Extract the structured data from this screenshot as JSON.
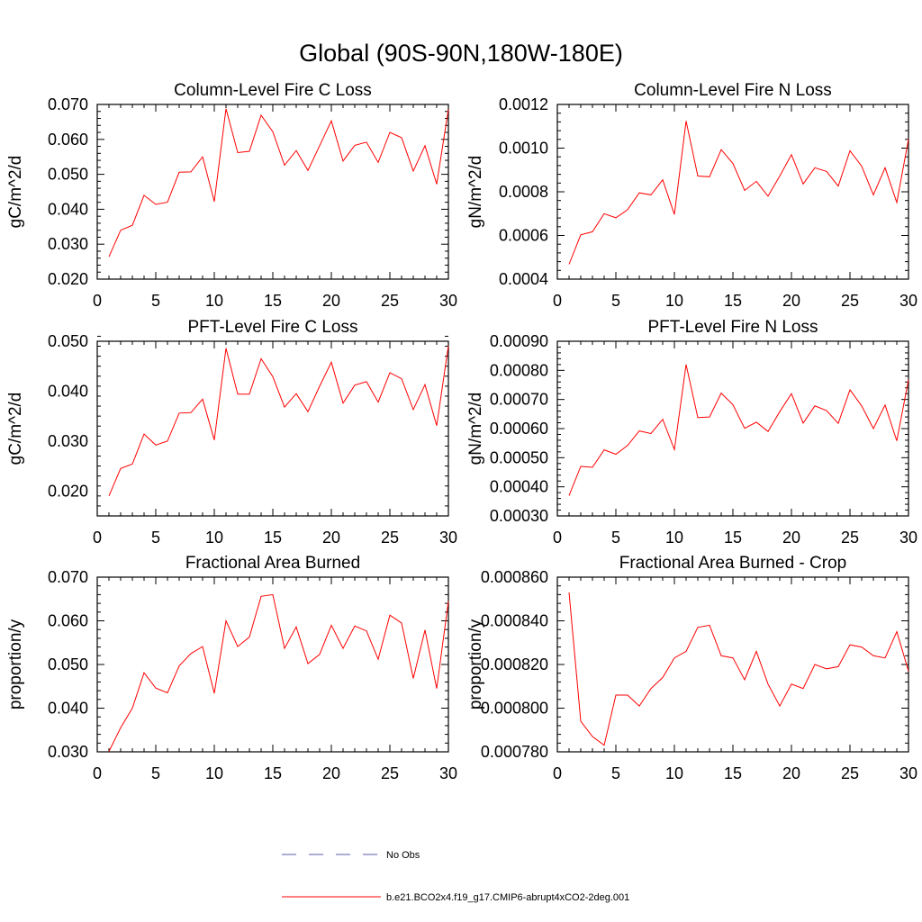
{
  "figure": {
    "title": "Global (90S-90N,180W-180E)"
  },
  "legend": [
    {
      "label": "No Obs",
      "style": "dashed",
      "color": "#5a5aa8"
    },
    {
      "label": "b.e21.BCO2x4.f19_g17.CMIP6-abrupt4xCO2-2deg.001",
      "style": "solid",
      "color": "#ff0000"
    }
  ],
  "chart_data": [
    {
      "type": "line",
      "title": "Column-Level Fire C Loss",
      "xlabel": "",
      "ylabel": "gC/m^2/d",
      "xlim": [
        0,
        30
      ],
      "ylim": [
        0.02,
        0.07
      ],
      "xticks": [
        0,
        5,
        10,
        15,
        20,
        25,
        30
      ],
      "yticks": [
        0.02,
        0.03,
        0.04,
        0.05,
        0.06,
        0.07
      ],
      "ytick_labels": [
        "0.020",
        "0.030",
        "0.040",
        "0.050",
        "0.060",
        "0.070"
      ],
      "series": [
        {
          "name": "b.e21.BCO2x4.f19_g17.CMIP6-abrupt4xCO2-2deg.001",
          "x": [
            1,
            2,
            3,
            4,
            5,
            6,
            7,
            8,
            9,
            10,
            11,
            12,
            13,
            14,
            15,
            16,
            17,
            18,
            19,
            20,
            21,
            22,
            23,
            24,
            25,
            26,
            27,
            28,
            29,
            30
          ],
          "values": [
            0.0264,
            0.034,
            0.0354,
            0.044,
            0.0414,
            0.042,
            0.0506,
            0.0507,
            0.055,
            0.0422,
            0.0688,
            0.0562,
            0.0566,
            0.0669,
            0.0622,
            0.0526,
            0.0568,
            0.0511,
            0.0582,
            0.0653,
            0.0538,
            0.0583,
            0.0592,
            0.0534,
            0.062,
            0.0605,
            0.0509,
            0.0582,
            0.0472,
            0.0686
          ]
        }
      ]
    },
    {
      "type": "line",
      "title": "Column-Level Fire N Loss",
      "xlabel": "",
      "ylabel": "gN/m^2/d",
      "xlim": [
        0,
        30
      ],
      "ylim": [
        0.0004,
        0.0012
      ],
      "xticks": [
        0,
        5,
        10,
        15,
        20,
        25,
        30
      ],
      "yticks": [
        0.0004,
        0.0006,
        0.0008,
        0.001,
        0.0012
      ],
      "ytick_labels": [
        "0.0004",
        "0.0006",
        "0.0008",
        "0.0010",
        "0.0012"
      ],
      "series": [
        {
          "name": "b.e21.BCO2x4.f19_g17.CMIP6-abrupt4xCO2-2deg.001",
          "x": [
            1,
            2,
            3,
            4,
            5,
            6,
            7,
            8,
            9,
            10,
            11,
            12,
            13,
            14,
            15,
            16,
            17,
            18,
            19,
            20,
            21,
            22,
            23,
            24,
            25,
            26,
            27,
            28,
            29,
            30
          ],
          "values": [
            0.000468,
            0.000603,
            0.000617,
            0.0007,
            0.000681,
            0.000718,
            0.000795,
            0.000786,
            0.000855,
            0.000696,
            0.001124,
            0.000872,
            0.000869,
            0.000993,
            0.00093,
            0.000806,
            0.000848,
            0.00078,
            0.000872,
            0.00097,
            0.000836,
            0.00091,
            0.000893,
            0.000826,
            0.000988,
            0.000917,
            0.000786,
            0.00091,
            0.000751,
            0.001041
          ]
        }
      ]
    },
    {
      "type": "line",
      "title": "PFT-Level Fire C Loss",
      "xlabel": "",
      "ylabel": "gC/m^2/d",
      "xlim": [
        0,
        30
      ],
      "ylim": [
        0.015,
        0.05
      ],
      "xticks": [
        0,
        5,
        10,
        15,
        20,
        25,
        30
      ],
      "yticks": [
        0.02,
        0.03,
        0.04,
        0.05
      ],
      "ytick_labels": [
        "0.020",
        "0.030",
        "0.040",
        "0.050"
      ],
      "series": [
        {
          "name": "b.e21.BCO2x4.f19_g17.CMIP6-abrupt4xCO2-2deg.001",
          "x": [
            1,
            2,
            3,
            4,
            5,
            6,
            7,
            8,
            9,
            10,
            11,
            12,
            13,
            14,
            15,
            16,
            17,
            18,
            19,
            20,
            21,
            22,
            23,
            24,
            25,
            26,
            27,
            28,
            29,
            30
          ],
          "values": [
            0.019,
            0.0245,
            0.0254,
            0.0314,
            0.0292,
            0.03,
            0.0356,
            0.0357,
            0.0384,
            0.0302,
            0.0486,
            0.0394,
            0.0394,
            0.0465,
            0.0429,
            0.0368,
            0.0395,
            0.0359,
            0.041,
            0.0458,
            0.0376,
            0.0412,
            0.0419,
            0.0378,
            0.0437,
            0.0425,
            0.0363,
            0.0413,
            0.0331,
            0.0491
          ]
        }
      ]
    },
    {
      "type": "line",
      "title": "PFT-Level Fire N Loss",
      "xlabel": "",
      "ylabel": "gN/m^2/d",
      "xlim": [
        0,
        30
      ],
      "ylim": [
        0.0003,
        0.0009
      ],
      "xticks": [
        0,
        5,
        10,
        15,
        20,
        25,
        30
      ],
      "yticks": [
        0.0003,
        0.0004,
        0.0005,
        0.0006,
        0.0007,
        0.0008,
        0.0009
      ],
      "ytick_labels": [
        "0.00030",
        "0.00040",
        "0.00050",
        "0.00060",
        "0.00070",
        "0.00080",
        "0.00090"
      ],
      "series": [
        {
          "name": "b.e21.BCO2x4.f19_g17.CMIP6-abrupt4xCO2-2deg.001",
          "x": [
            1,
            2,
            3,
            4,
            5,
            6,
            7,
            8,
            9,
            10,
            11,
            12,
            13,
            14,
            15,
            16,
            17,
            18,
            19,
            20,
            21,
            22,
            23,
            24,
            25,
            26,
            27,
            28,
            29,
            30
          ],
          "values": [
            0.00037,
            0.00047,
            0.000467,
            0.000527,
            0.000512,
            0.000542,
            0.000592,
            0.000583,
            0.000632,
            0.000528,
            0.00082,
            0.000638,
            0.00064,
            0.000722,
            0.000682,
            0.000601,
            0.000622,
            0.00059,
            0.000658,
            0.00072,
            0.000619,
            0.000678,
            0.000662,
            0.000618,
            0.000733,
            0.000678,
            0.0006,
            0.000681,
            0.000558,
            0.000768
          ]
        }
      ]
    },
    {
      "type": "line",
      "title": "Fractional Area Burned",
      "xlabel": "",
      "ylabel": "proportion/y",
      "xlim": [
        0,
        30
      ],
      "ylim": [
        0.03,
        0.07
      ],
      "xticks": [
        0,
        5,
        10,
        15,
        20,
        25,
        30
      ],
      "yticks": [
        0.03,
        0.04,
        0.05,
        0.06,
        0.07
      ],
      "ytick_labels": [
        "0.030",
        "0.040",
        "0.050",
        "0.060",
        "0.070"
      ],
      "series": [
        {
          "name": "b.e21.BCO2x4.f19_g17.CMIP6-abrupt4xCO2-2deg.001",
          "x": [
            1,
            2,
            3,
            4,
            5,
            6,
            7,
            8,
            9,
            10,
            11,
            12,
            13,
            14,
            15,
            16,
            17,
            18,
            19,
            20,
            21,
            22,
            23,
            24,
            25,
            26,
            27,
            28,
            29,
            30
          ],
          "values": [
            0.0301,
            0.0355,
            0.04,
            0.0481,
            0.0446,
            0.0435,
            0.0497,
            0.0525,
            0.0541,
            0.0434,
            0.06,
            0.0541,
            0.0563,
            0.0656,
            0.066,
            0.0537,
            0.0586,
            0.0502,
            0.0523,
            0.059,
            0.0537,
            0.0588,
            0.0577,
            0.0512,
            0.0613,
            0.0595,
            0.0468,
            0.0579,
            0.0445,
            0.0645
          ]
        }
      ]
    },
    {
      "type": "line",
      "title": "Fractional Area Burned - Crop",
      "xlabel": "",
      "ylabel": "proportion/y",
      "xlim": [
        0,
        30
      ],
      "ylim": [
        0.00078,
        0.00086
      ],
      "xticks": [
        0,
        5,
        10,
        15,
        20,
        25,
        30
      ],
      "yticks": [
        0.00078,
        0.0008,
        0.00082,
        0.00084,
        0.00086
      ],
      "ytick_labels": [
        "0.000780",
        "0.000800",
        "0.000820",
        "0.000840",
        "0.000860"
      ],
      "series": [
        {
          "name": "b.e21.BCO2x4.f19_g17.CMIP6-abrupt4xCO2-2deg.001",
          "x": [
            1,
            2,
            3,
            4,
            5,
            6,
            7,
            8,
            9,
            10,
            11,
            12,
            13,
            14,
            15,
            16,
            17,
            18,
            19,
            20,
            21,
            22,
            23,
            24,
            25,
            26,
            27,
            28,
            29,
            30
          ],
          "values": [
            0.000853,
            0.000794,
            0.000787,
            0.000783,
            0.000806,
            0.000806,
            0.000801,
            0.000809,
            0.000814,
            0.000823,
            0.000826,
            0.000837,
            0.000838,
            0.000824,
            0.000823,
            0.000813,
            0.000826,
            0.000811,
            0.000801,
            0.000811,
            0.000809,
            0.00082,
            0.000818,
            0.000819,
            0.000829,
            0.000828,
            0.000824,
            0.000823,
            0.000835,
            0.000817
          ]
        }
      ]
    }
  ]
}
